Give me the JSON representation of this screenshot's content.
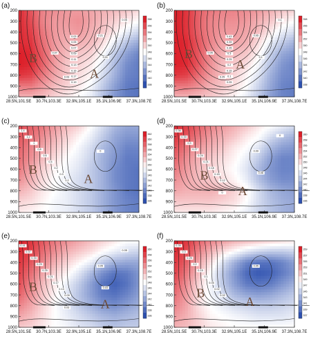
{
  "chart_data": [
    {
      "panel": "(a)",
      "type": "heatmap",
      "ylim": [
        1000,
        200
      ],
      "yticks": [
        "200",
        "300",
        "400",
        "500",
        "600",
        "700",
        "800",
        "900",
        "1000"
      ],
      "xticks": [
        "28.5N,101.5E",
        "30.7N,103.3E",
        "32.9N,105.1E",
        "35.1N,106.9E",
        "37.3N,108.7E"
      ],
      "colorbar": [
        "358",
        "356",
        "354",
        "352",
        "350",
        "348",
        "346",
        "344",
        "342",
        "340",
        "338"
      ],
      "regions": [
        "B",
        "A"
      ],
      "contour_labels": [
        "0.03",
        "0.05",
        "0.07",
        "0.09",
        "0.11",
        "0.13",
        "0.15",
        "0.17",
        "0.19",
        "0.21",
        "0.01",
        "0.03",
        "0.05",
        "0.07"
      ],
      "field": [
        [
          0.95,
          0.75,
          0.55,
          0.5,
          0.45,
          0.45,
          0.4,
          0.35,
          0.3,
          0.25,
          0.15
        ],
        [
          0.95,
          0.8,
          0.55,
          0.45,
          0.45,
          0.5,
          0.4,
          0.3,
          0.2,
          0.1,
          0.0
        ],
        [
          0.95,
          0.85,
          0.6,
          0.45,
          0.4,
          0.45,
          0.35,
          0.25,
          0.1,
          -0.1,
          -0.25
        ],
        [
          0.95,
          0.9,
          0.65,
          0.45,
          0.35,
          0.35,
          0.3,
          0.15,
          -0.1,
          -0.35,
          -0.5
        ],
        [
          1.0,
          0.95,
          0.7,
          0.45,
          0.3,
          0.25,
          0.2,
          0.0,
          -0.3,
          -0.55,
          -0.7
        ],
        [
          1.0,
          0.95,
          0.7,
          0.45,
          0.25,
          0.2,
          0.1,
          -0.1,
          -0.4,
          -0.65,
          -0.75
        ],
        [
          0.9,
          0.85,
          0.6,
          0.4,
          0.25,
          0.15,
          0.05,
          -0.2,
          -0.45,
          -0.7,
          -0.75
        ],
        [
          0.6,
          0.6,
          0.45,
          0.3,
          0.2,
          0.1,
          -0.05,
          -0.3,
          -0.55,
          -0.75,
          -0.8
        ],
        [
          0.35,
          0.35,
          0.3,
          0.2,
          0.1,
          0.0,
          -0.1,
          -0.35,
          -0.6,
          -0.75,
          -0.8
        ]
      ]
    },
    {
      "panel": "(b)",
      "type": "heatmap",
      "ylim": [
        1000,
        200
      ],
      "yticks": [
        "200",
        "300",
        "400",
        "500",
        "600",
        "700",
        "800",
        "900",
        "1000"
      ],
      "xticks": [
        "28.5N,101.5E",
        "30.7N,103.3E",
        "32.9N,105.1E",
        "35.1N,106.9E",
        "37.3N,108.7E"
      ],
      "colorbar": [
        "358",
        "356",
        "354",
        "352",
        "350",
        "348",
        "346",
        "344",
        "342",
        "340",
        "338"
      ],
      "regions": [
        "B",
        "A"
      ],
      "contour_labels": [
        "0.43",
        "0.39",
        "0.35",
        "0.3",
        "0.25",
        "0.2",
        "0.15",
        "0.1",
        "0.05",
        "0.05",
        "0.1",
        "0.25",
        "0.1",
        "0.05"
      ],
      "field": [
        [
          1.0,
          0.9,
          0.7,
          0.6,
          0.55,
          0.55,
          0.5,
          0.45,
          0.35,
          0.25,
          0.2
        ],
        [
          1.0,
          0.9,
          0.7,
          0.55,
          0.5,
          0.5,
          0.45,
          0.35,
          0.25,
          0.1,
          0.0
        ],
        [
          1.0,
          0.9,
          0.7,
          0.55,
          0.45,
          0.45,
          0.4,
          0.3,
          0.1,
          -0.1,
          -0.2
        ],
        [
          1.0,
          0.95,
          0.75,
          0.55,
          0.4,
          0.4,
          0.35,
          0.15,
          -0.1,
          -0.3,
          -0.45
        ],
        [
          1.0,
          0.95,
          0.75,
          0.5,
          0.35,
          0.3,
          0.25,
          0.05,
          -0.25,
          -0.5,
          -0.6
        ],
        [
          1.0,
          0.95,
          0.75,
          0.5,
          0.3,
          0.25,
          0.15,
          -0.05,
          -0.35,
          -0.6,
          -0.7
        ],
        [
          0.9,
          0.85,
          0.65,
          0.45,
          0.3,
          0.2,
          0.05,
          -0.15,
          -0.45,
          -0.65,
          -0.7
        ],
        [
          0.6,
          0.6,
          0.5,
          0.35,
          0.25,
          0.15,
          0.0,
          -0.25,
          -0.5,
          -0.7,
          -0.75
        ],
        [
          0.35,
          0.35,
          0.3,
          0.25,
          0.15,
          0.05,
          -0.1,
          -0.3,
          -0.55,
          -0.7,
          -0.75
        ]
      ]
    },
    {
      "panel": "(c)",
      "type": "heatmap",
      "ylim": [
        1000,
        200
      ],
      "yticks": [
        "200",
        "300",
        "400",
        "500",
        "600",
        "700",
        "800",
        "900",
        "1000"
      ],
      "xticks": [
        "28.5N,101.5E",
        "30.7N,103.3E",
        "32.9N,105.1E",
        "35.1N,106.9E",
        "37.3N,108.7E"
      ],
      "colorbar": [
        "362",
        "360",
        "358",
        "356",
        "354",
        "352",
        "350",
        "348",
        "346",
        "344",
        "342",
        "340",
        "338",
        "336"
      ],
      "regions": [
        "B",
        "A"
      ],
      "contour_labels": [
        "1.4",
        "1.2",
        "1",
        "0.8",
        "0.6",
        "0.4",
        "0.2",
        "0.3",
        "0.2",
        "0"
      ],
      "field": [
        [
          0.8,
          0.7,
          0.6,
          0.45,
          0.3,
          0.2,
          0.0,
          -0.2,
          -0.4,
          -0.5,
          -0.5
        ],
        [
          0.75,
          0.65,
          0.5,
          0.35,
          0.2,
          0.05,
          -0.1,
          -0.3,
          -0.5,
          -0.6,
          -0.6
        ],
        [
          0.7,
          0.55,
          0.4,
          0.25,
          0.1,
          -0.05,
          -0.2,
          -0.4,
          -0.55,
          -0.7,
          -0.7
        ],
        [
          0.65,
          0.5,
          0.3,
          0.15,
          0.0,
          -0.1,
          -0.25,
          -0.45,
          -0.6,
          -0.75,
          -0.75
        ],
        [
          0.6,
          0.4,
          0.2,
          0.05,
          -0.05,
          -0.15,
          -0.3,
          -0.45,
          -0.65,
          -0.75,
          -0.8
        ],
        [
          0.5,
          0.35,
          0.15,
          0.0,
          -0.1,
          -0.2,
          -0.3,
          -0.45,
          -0.65,
          -0.75,
          -0.8
        ],
        [
          0.35,
          0.25,
          0.1,
          0.0,
          -0.1,
          -0.2,
          -0.3,
          -0.45,
          -0.6,
          -0.75,
          -0.8
        ],
        [
          0.2,
          0.15,
          0.05,
          -0.05,
          -0.1,
          -0.2,
          -0.3,
          -0.45,
          -0.6,
          -0.7,
          -0.75
        ],
        [
          0.1,
          0.05,
          0.0,
          -0.05,
          -0.1,
          -0.2,
          -0.3,
          -0.45,
          -0.6,
          -0.7,
          -0.75
        ]
      ]
    },
    {
      "panel": "(d)",
      "type": "heatmap",
      "ylim": [
        1000,
        200
      ],
      "yticks": [
        "200",
        "300",
        "400",
        "500",
        "600",
        "700",
        "800",
        "900",
        "1000"
      ],
      "xticks": [
        "28.5N,101.5E",
        "30.7N,103.3E",
        "32.9N,105.1E",
        "35.1N,106.9E",
        "37.3N,108.7E"
      ],
      "colorbar": [
        "360",
        "358",
        "356",
        "354",
        "352",
        "350",
        "348",
        "346",
        "344",
        "342",
        "340",
        "338",
        "336"
      ],
      "regions": [
        "B",
        "A"
      ],
      "contour_labels": [
        "0.36",
        "0.33",
        "0.3",
        "0.27",
        "0.24",
        "0.21",
        "0.18",
        "0.15",
        "0.12",
        "0.09",
        "0.06",
        "0",
        "0"
      ],
      "field": [
        [
          0.95,
          0.85,
          0.7,
          0.55,
          0.45,
          0.35,
          0.25,
          0.1,
          0.0,
          -0.1,
          -0.2
        ],
        [
          0.9,
          0.75,
          0.6,
          0.45,
          0.35,
          0.25,
          0.1,
          0.0,
          -0.2,
          -0.35,
          -0.45
        ],
        [
          0.8,
          0.6,
          0.45,
          0.35,
          0.25,
          0.1,
          0.0,
          -0.15,
          -0.4,
          -0.55,
          -0.6
        ],
        [
          0.7,
          0.5,
          0.35,
          0.25,
          0.15,
          0.05,
          -0.1,
          -0.3,
          -0.55,
          -0.7,
          -0.7
        ],
        [
          0.6,
          0.45,
          0.3,
          0.2,
          0.1,
          0.0,
          -0.15,
          -0.4,
          -0.6,
          -0.7,
          -0.7
        ],
        [
          0.5,
          0.4,
          0.3,
          0.25,
          0.15,
          0.05,
          -0.1,
          -0.35,
          -0.55,
          -0.65,
          -0.65
        ],
        [
          0.4,
          0.35,
          0.35,
          0.35,
          0.3,
          0.2,
          0.05,
          -0.2,
          -0.4,
          -0.5,
          -0.55
        ],
        [
          0.25,
          0.25,
          0.25,
          0.25,
          0.2,
          0.15,
          0.0,
          -0.2,
          -0.35,
          -0.45,
          -0.5
        ],
        [
          0.1,
          0.1,
          0.1,
          0.1,
          0.05,
          0.0,
          -0.1,
          -0.25,
          -0.35,
          -0.45,
          -0.5
        ]
      ]
    },
    {
      "panel": "(e)",
      "type": "heatmap",
      "ylim": [
        1000,
        200
      ],
      "yticks": [
        "200",
        "300",
        "400",
        "500",
        "600",
        "700",
        "800",
        "900",
        "1000"
      ],
      "xticks": [
        "28.5N,101.5E",
        "30.7N,103.3E",
        "32.9N,105.1E",
        "35.1N,106.9E",
        "37.3N,108.7E"
      ],
      "colorbar": [
        "360",
        "358",
        "356",
        "354",
        "352",
        "350",
        "348",
        "346",
        "344",
        "342",
        "340",
        "338",
        "336"
      ],
      "regions": [
        "B",
        "A"
      ],
      "contour_labels": [
        "0.41",
        "0.37",
        "0.33",
        "0.29",
        "0.25",
        "0.21",
        "0.17",
        "0.13",
        "0.09",
        "0.05",
        "0.03",
        "0.03",
        "0.05"
      ],
      "field": [
        [
          1.0,
          0.9,
          0.75,
          0.6,
          0.5,
          0.4,
          0.3,
          0.2,
          0.1,
          0.0,
          0.0
        ],
        [
          0.95,
          0.85,
          0.65,
          0.5,
          0.35,
          0.25,
          0.15,
          0.0,
          -0.1,
          -0.2,
          -0.25
        ],
        [
          0.9,
          0.75,
          0.55,
          0.35,
          0.2,
          0.05,
          -0.1,
          -0.3,
          -0.45,
          -0.5,
          -0.5
        ],
        [
          0.85,
          0.65,
          0.4,
          0.2,
          0.05,
          -0.15,
          -0.4,
          -0.65,
          -0.8,
          -0.75,
          -0.6
        ],
        [
          0.8,
          0.55,
          0.3,
          0.1,
          -0.1,
          -0.3,
          -0.55,
          -0.8,
          -0.9,
          -0.8,
          -0.6
        ],
        [
          0.7,
          0.5,
          0.25,
          0.05,
          -0.15,
          -0.35,
          -0.55,
          -0.75,
          -0.8,
          -0.7,
          -0.55
        ],
        [
          0.55,
          0.4,
          0.2,
          0.0,
          -0.15,
          -0.3,
          -0.45,
          -0.6,
          -0.65,
          -0.55,
          -0.45
        ],
        [
          0.4,
          0.3,
          0.15,
          0.0,
          -0.1,
          -0.2,
          -0.3,
          -0.4,
          -0.45,
          -0.4,
          -0.35
        ],
        [
          0.25,
          0.2,
          0.1,
          0.0,
          -0.05,
          -0.15,
          -0.2,
          -0.3,
          -0.35,
          -0.3,
          -0.3
        ]
      ]
    },
    {
      "panel": "(f)",
      "type": "heatmap",
      "ylim": [
        1000,
        200
      ],
      "yticks": [
        "200",
        "300",
        "400",
        "500",
        "600",
        "700",
        "800",
        "900",
        "1000"
      ],
      "xticks": [
        "28.5N,101.5E",
        "30.7N,103.3E",
        "32.9N,105.1E",
        "35.1N,106.9E",
        "37.3N,108.7E"
      ],
      "colorbar": [
        "359",
        "357",
        "355",
        "353",
        "351",
        "349",
        "347",
        "345",
        "343",
        "341",
        "339",
        "337"
      ],
      "regions": [
        "B",
        "A"
      ],
      "contour_labels": [
        "0.35",
        "0.3",
        "0.25",
        "0.2",
        "0.15",
        "0.1",
        "0.05",
        "0.02",
        "0.02",
        "0.05"
      ],
      "field": [
        [
          1.0,
          0.9,
          0.7,
          0.55,
          0.45,
          0.35,
          0.3,
          0.25,
          0.2,
          0.15,
          0.1
        ],
        [
          0.95,
          0.8,
          0.55,
          0.35,
          0.15,
          0.0,
          -0.15,
          -0.25,
          -0.3,
          -0.3,
          -0.25
        ],
        [
          0.9,
          0.7,
          0.4,
          0.15,
          -0.15,
          -0.45,
          -0.7,
          -0.8,
          -0.8,
          -0.7,
          -0.55
        ],
        [
          0.85,
          0.6,
          0.3,
          0.0,
          -0.3,
          -0.6,
          -0.85,
          -0.95,
          -0.9,
          -0.75,
          -0.6
        ],
        [
          0.75,
          0.5,
          0.2,
          -0.05,
          -0.3,
          -0.55,
          -0.75,
          -0.8,
          -0.75,
          -0.6,
          -0.45
        ],
        [
          0.65,
          0.45,
          0.15,
          -0.05,
          -0.2,
          -0.4,
          -0.5,
          -0.55,
          -0.5,
          -0.4,
          -0.3
        ],
        [
          0.55,
          0.4,
          0.15,
          0.0,
          -0.1,
          -0.2,
          -0.25,
          -0.3,
          -0.3,
          -0.25,
          -0.2
        ],
        [
          0.45,
          0.35,
          0.2,
          0.05,
          0.0,
          -0.05,
          -0.1,
          -0.15,
          -0.15,
          -0.15,
          -0.1
        ],
        [
          0.35,
          0.3,
          0.2,
          0.1,
          0.05,
          0.0,
          0.0,
          0.0,
          0.0,
          0.0,
          0.0
        ]
      ]
    }
  ]
}
